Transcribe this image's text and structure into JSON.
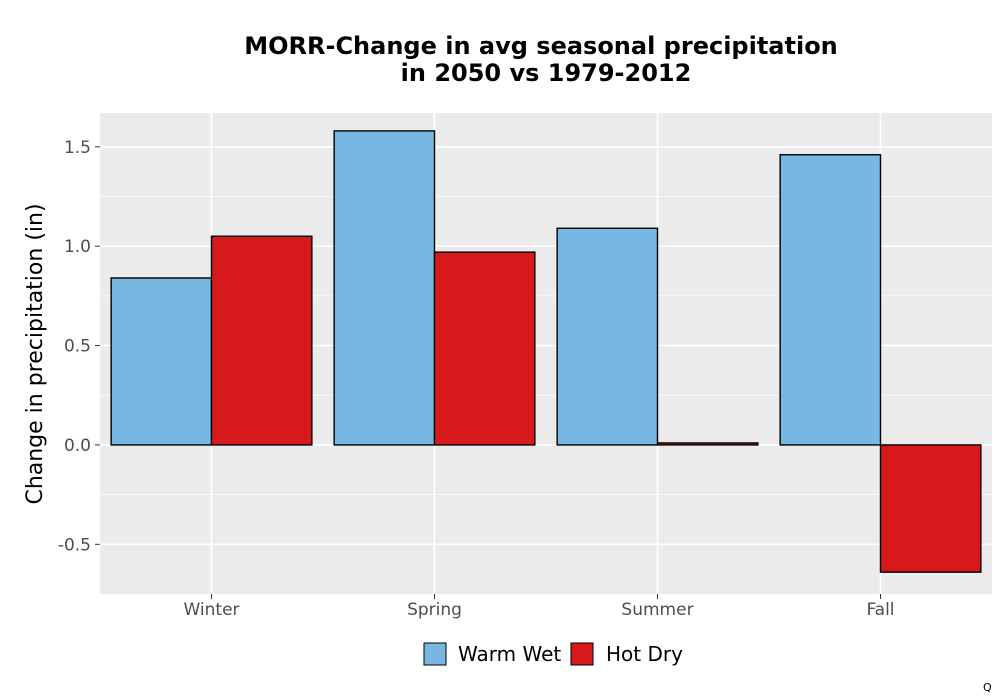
{
  "chart_data": {
    "type": "bar",
    "title_lines": [
      "MORR-Change in avg seasonal precipitation",
      "in 2050 vs 1979-2012"
    ],
    "xlabel": "",
    "ylabel": "Change in precipitation (in)",
    "categories": [
      "Winter",
      "Spring",
      "Summer",
      "Fall"
    ],
    "series": [
      {
        "name": "Warm Wet",
        "color": "#77b7e1",
        "values": [
          0.84,
          1.58,
          1.09,
          1.46
        ]
      },
      {
        "name": "Hot Dry",
        "color": "#d7191c",
        "values": [
          1.05,
          0.97,
          0.01,
          -0.64
        ]
      }
    ],
    "ylim": [
      -0.75,
      1.67
    ],
    "yticks": [
      -0.5,
      0.0,
      0.5,
      1.0,
      1.5
    ],
    "ytick_labels": [
      "-0.5",
      "0.0",
      "0.5",
      "1.0",
      "1.5"
    ],
    "grid": true,
    "legend_position": "bottom",
    "panel_background": "#ebebeb",
    "grid_color": "#ffffff"
  },
  "corner_note": "Q"
}
